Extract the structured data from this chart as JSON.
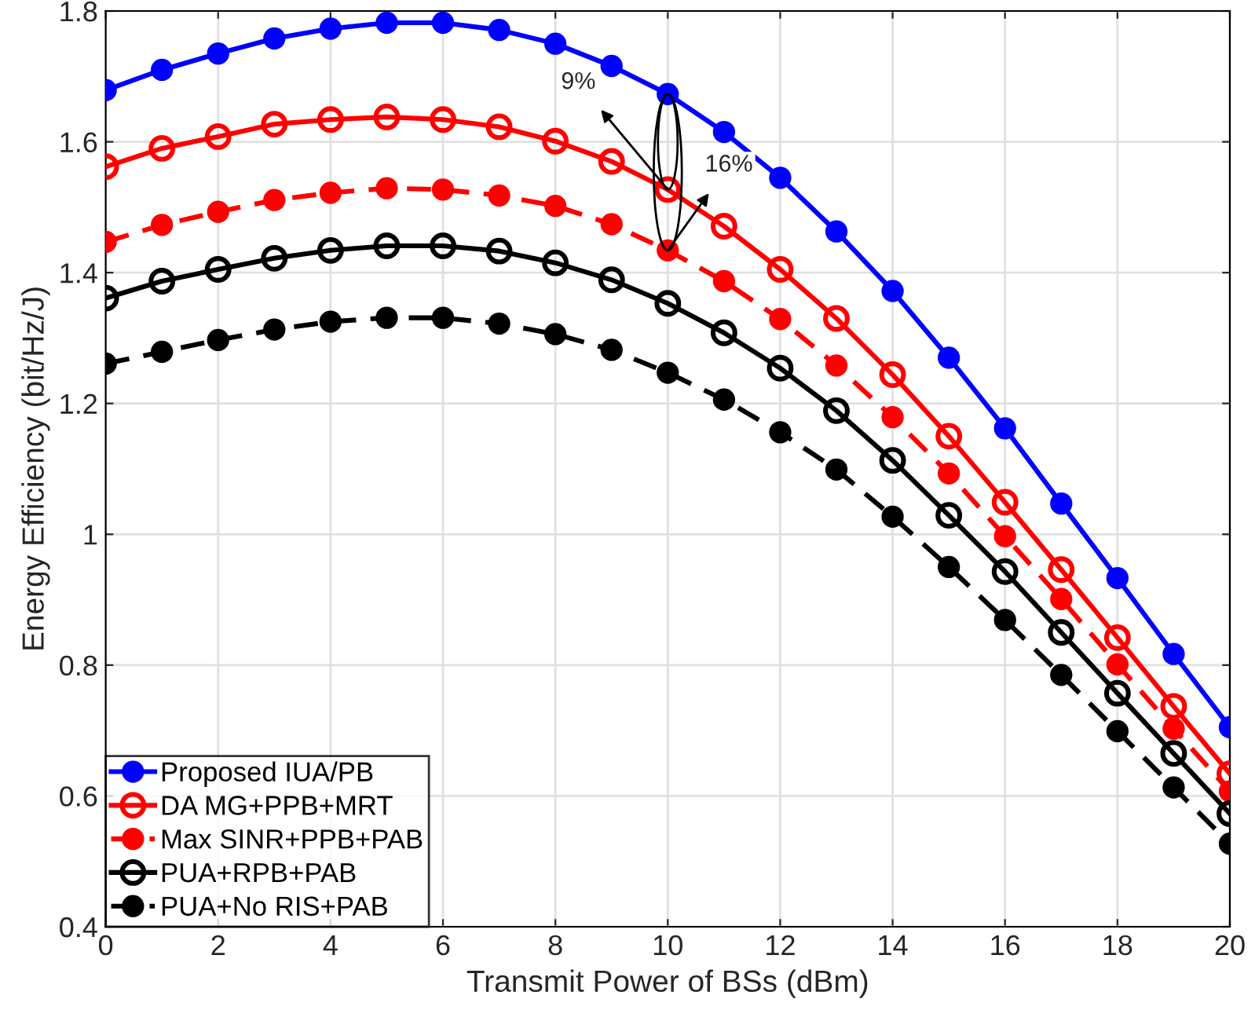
{
  "chart_data": {
    "type": "line",
    "xlabel": "Transmit Power of BSs (dBm)",
    "ylabel": "Energy Efficiency (bit/Hz/J)",
    "x": [
      0,
      1,
      2,
      3,
      4,
      5,
      6,
      7,
      8,
      9,
      10,
      11,
      12,
      13,
      14,
      15,
      16,
      17,
      18,
      19,
      20
    ],
    "series": [
      {
        "name": "Proposed IUA/PB",
        "color": "#0000ff",
        "marker": "circle",
        "line_style": "solid",
        "values": [
          1.679,
          1.71,
          1.735,
          1.758,
          1.773,
          1.782,
          1.782,
          1.771,
          1.75,
          1.716,
          1.673,
          1.615,
          1.545,
          1.463,
          1.372,
          1.27,
          1.162,
          1.047,
          0.933,
          0.817,
          0.705
        ]
      },
      {
        "name": "DA MG+PPB+MRT",
        "color": "#ff0000",
        "marker": "open circle",
        "line_style": "solid",
        "values": [
          1.562,
          1.59,
          1.608,
          1.627,
          1.634,
          1.638,
          1.634,
          1.623,
          1.601,
          1.57,
          1.527,
          1.471,
          1.405,
          1.33,
          1.244,
          1.15,
          1.049,
          0.946,
          0.842,
          0.737,
          0.634
        ]
      },
      {
        "name": "Max SINR+PPB+PAB",
        "color": "#ff0000",
        "marker": "circle",
        "line_style": "dashed",
        "values": [
          1.447,
          1.473,
          1.493,
          1.511,
          1.522,
          1.529,
          1.527,
          1.518,
          1.502,
          1.474,
          1.434,
          1.387,
          1.329,
          1.258,
          1.179,
          1.093,
          0.997,
          0.901,
          0.801,
          0.703,
          0.607
        ]
      },
      {
        "name": "PUA+RPB+PAB",
        "color": "#000000",
        "marker": "open circle",
        "line_style": "solid",
        "values": [
          1.361,
          1.387,
          1.405,
          1.422,
          1.434,
          1.441,
          1.441,
          1.433,
          1.415,
          1.389,
          1.353,
          1.308,
          1.254,
          1.189,
          1.113,
          1.029,
          0.943,
          0.85,
          0.757,
          0.665,
          0.573
        ]
      },
      {
        "name": "PUA+No RIS+PAB",
        "color": "#000000",
        "marker": "circle",
        "line_style": "dashed",
        "values": [
          1.261,
          1.279,
          1.297,
          1.313,
          1.325,
          1.331,
          1.331,
          1.322,
          1.306,
          1.282,
          1.247,
          1.206,
          1.156,
          1.099,
          1.027,
          0.95,
          0.869,
          0.785,
          0.699,
          0.613,
          0.527
        ]
      }
    ],
    "xlim": [
      0,
      20
    ],
    "ylim": [
      0.4,
      1.8
    ],
    "xticks": [
      0,
      2,
      4,
      6,
      8,
      10,
      12,
      14,
      16,
      18,
      20
    ],
    "yticks": [
      0.4,
      0.6,
      0.8,
      1,
      1.2,
      1.4,
      1.6,
      1.8
    ],
    "annotations": [
      {
        "text": "9%",
        "x": 10,
        "y": 1.527
      },
      {
        "text": "16%",
        "x": 10,
        "y": 1.434
      }
    ],
    "grid": true,
    "legend": "bottom left"
  }
}
